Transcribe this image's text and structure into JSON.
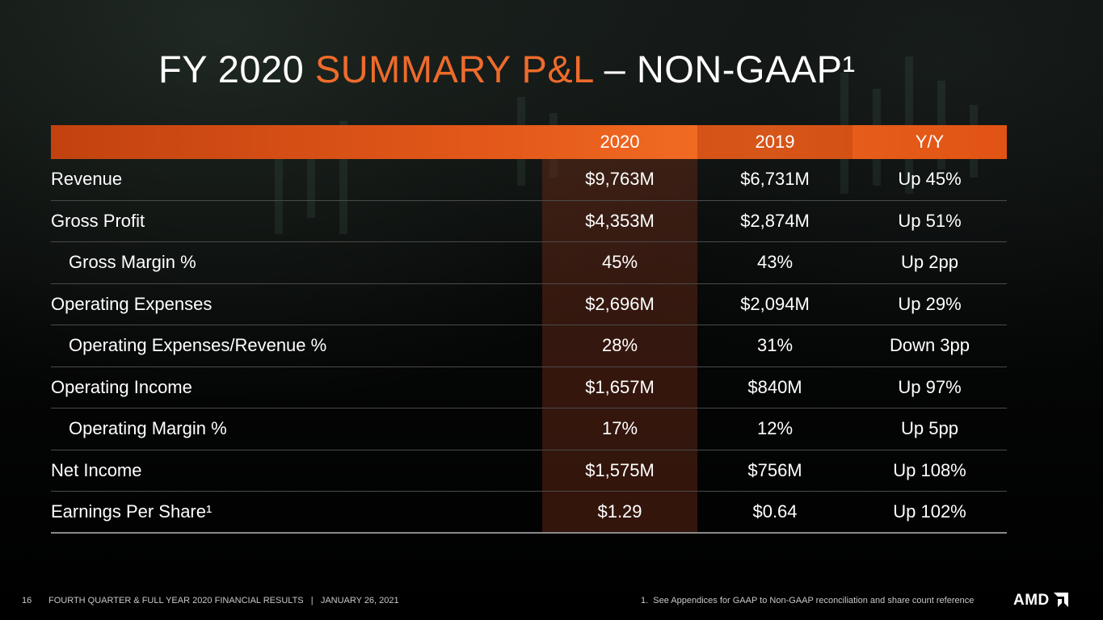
{
  "slide": {
    "title_prefix": "FY 2020 ",
    "title_accent": "SUMMARY P&L",
    "title_suffix": " – NON-GAAP¹"
  },
  "table": {
    "headers": [
      "",
      "2020",
      "2019",
      "Y/Y"
    ],
    "rows": [
      {
        "label": "Revenue",
        "indent": false,
        "v2020": "$9,763M",
        "v2019": "$6,731M",
        "yy": "Up 45%"
      },
      {
        "label": "Gross Profit",
        "indent": false,
        "v2020": "$4,353M",
        "v2019": "$2,874M",
        "yy": "Up 51%"
      },
      {
        "label": "Gross Margin %",
        "indent": true,
        "v2020": "45%",
        "v2019": "43%",
        "yy": "Up 2pp"
      },
      {
        "label": "Operating Expenses",
        "indent": false,
        "v2020": "$2,696M",
        "v2019": "$2,094M",
        "yy": "Up 29%"
      },
      {
        "label": "Operating Expenses/Revenue %",
        "indent": true,
        "v2020": "28%",
        "v2019": "31%",
        "yy": "Down 3pp"
      },
      {
        "label": "Operating Income",
        "indent": false,
        "v2020": "$1,657M",
        "v2019": "$840M",
        "yy": "Up 97%"
      },
      {
        "label": "Operating Margin %",
        "indent": true,
        "v2020": "17%",
        "v2019": "12%",
        "yy": "Up 5pp"
      },
      {
        "label": "Net Income",
        "indent": false,
        "v2020": "$1,575M",
        "v2019": "$756M",
        "yy": "Up 108%"
      },
      {
        "label": "Earnings Per Share¹",
        "indent": false,
        "v2020": "$1.29",
        "v2019": "$0.64",
        "yy": "Up 102%"
      }
    ]
  },
  "footer": {
    "page_number": "16",
    "center_text": "FOURTH QUARTER & FULL YEAR 2020 FINANCIAL RESULTS   |   JANUARY 26, 2021",
    "note": "1.  See Appendices for GAAP to Non-GAAP reconciliation and share count reference",
    "logo_text": "AMD",
    "logo_icon": "amd-arrow-icon"
  },
  "colors": {
    "accent": "#ee6b2c",
    "header_bar": "#e3581a",
    "highlight_column": "#4a2418"
  }
}
